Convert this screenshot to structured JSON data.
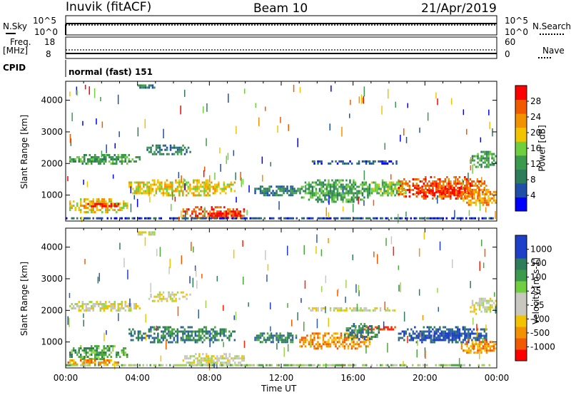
{
  "header": {
    "station": "Inuvik (fitACF)",
    "beam": "Beam 10",
    "date": "21/Apr/2019"
  },
  "top_panels": {
    "nsky_label": "N.Sky",
    "nsky_ticks": [
      "10^5",
      "10^0"
    ],
    "nsearch_label": "N.Search",
    "nsearch_ticks": [
      "10^5",
      "10^0"
    ],
    "freq_label_1": "Freq.",
    "freq_label_2": "[MHz]",
    "freq_ticks": [
      "18",
      "8"
    ],
    "nave_label": "Nave",
    "nave_ticks": [
      "60",
      "0"
    ],
    "cpid_label": "CPID",
    "cpid_value": "normal (fast) 151"
  },
  "colors": {
    "power_scale": [
      "#0000ff",
      "#1f4fa8",
      "#2e7d5a",
      "#3c9a4c",
      "#6fcf3f",
      "#f2c400",
      "#f39200",
      "#f25a00",
      "#ff0000"
    ],
    "velocity_scale": [
      "#1e40c8",
      "#2f5fa8",
      "#2e7d5a",
      "#4aa83c",
      "#9ed64a",
      "#c8c8c0",
      "#f2c400",
      "#f39200",
      "#f25a00",
      "#ff2000"
    ],
    "power_colorbar": [
      "#0000ff",
      "#1f4fa8",
      "#2e7d5a",
      "#3c9a4c",
      "#6fcf3f",
      "#f2c400",
      "#f39200",
      "#f25a00",
      "#ff0000"
    ],
    "velocity_colorbar": [
      "#ff0000",
      "#f25a00",
      "#f39200",
      "#f2c400",
      "#c8c8c0",
      "#c8c8c0",
      "#6fcf3f",
      "#3c9a4c",
      "#2e7d5a",
      "#1e40c8",
      "#1e40c8"
    ]
  },
  "chart_data": [
    {
      "type": "heatmap",
      "name": "power",
      "ylabel": "Slant Range [km]",
      "yticks": [
        1000,
        2000,
        3000,
        4000
      ],
      "ylim": [
        180,
        4600
      ],
      "xlim": [
        0,
        24
      ],
      "colorbar_label": "Power [dB]",
      "colorbar_ticks": [
        "4",
        "8",
        "12",
        "16",
        "20",
        "24",
        "28"
      ],
      "colorbar_range": [
        0,
        30
      ],
      "blobs": [
        {
          "t0": 0.2,
          "t1": 4.2,
          "r0": 1900,
          "r1": 2300,
          "level": 3
        },
        {
          "t0": 4.5,
          "t1": 7.0,
          "r0": 2250,
          "r1": 2600,
          "level": 2
        },
        {
          "t0": 0.2,
          "t1": 3.5,
          "r0": 400,
          "r1": 900,
          "level": 5
        },
        {
          "t0": 1.0,
          "t1": 3.0,
          "r0": 550,
          "r1": 750,
          "level": 8
        },
        {
          "t0": 3.5,
          "t1": 9.5,
          "r0": 900,
          "r1": 1500,
          "level": 5
        },
        {
          "t0": 6.5,
          "t1": 10.0,
          "r0": 200,
          "r1": 650,
          "level": 7
        },
        {
          "t0": 8.0,
          "t1": 9.8,
          "r0": 200,
          "r1": 450,
          "level": 8
        },
        {
          "t0": 10.5,
          "t1": 13.0,
          "r0": 900,
          "r1": 1300,
          "level": 2
        },
        {
          "t0": 13.0,
          "t1": 17.0,
          "r0": 700,
          "r1": 1500,
          "level": 3
        },
        {
          "t0": 17.0,
          "t1": 19.0,
          "r0": 900,
          "r1": 1500,
          "level": 4
        },
        {
          "t0": 18.5,
          "t1": 23.5,
          "r0": 800,
          "r1": 1600,
          "level": 7
        },
        {
          "t0": 19.5,
          "t1": 22.5,
          "r0": 900,
          "r1": 1300,
          "level": 8
        },
        {
          "t0": 22.0,
          "t1": 24.0,
          "r0": 600,
          "r1": 1200,
          "level": 6
        },
        {
          "t0": 13.5,
          "t1": 18.5,
          "r0": 1900,
          "r1": 2100,
          "level": 1
        },
        {
          "t0": 22.5,
          "t1": 24.0,
          "r0": 1800,
          "r1": 2400,
          "level": 3
        },
        {
          "t0": 4.0,
          "t1": 5.0,
          "r0": 4300,
          "r1": 4500,
          "level": 2
        },
        {
          "t0": 0.0,
          "t1": 24.0,
          "r0": 180,
          "r1": 300,
          "level": 1
        }
      ]
    },
    {
      "type": "heatmap",
      "name": "velocity",
      "ylabel": "Slant Range [km]",
      "xlabel": "Time UT",
      "xticks": [
        "00:00",
        "04:00",
        "08:00",
        "12:00",
        "16:00",
        "20:00",
        "00:00"
      ],
      "yticks": [
        1000,
        2000,
        3000,
        4000
      ],
      "ylim": [
        180,
        4600
      ],
      "xlim": [
        0,
        24
      ],
      "colorbar_label": "Velocity [m s-1]",
      "colorbar_ticks": [
        "1000",
        "500",
        "100",
        "25",
        "-25",
        "-100",
        "-500",
        "-1000"
      ],
      "blobs": [
        {
          "t0": 0.2,
          "t1": 4.2,
          "r0": 1900,
          "r1": 2300,
          "level": 5
        },
        {
          "t0": 4.5,
          "t1": 7.0,
          "r0": 2250,
          "r1": 2600,
          "level": 5
        },
        {
          "t0": 0.2,
          "t1": 3.5,
          "r0": 400,
          "r1": 900,
          "level": 3
        },
        {
          "t0": 0.0,
          "t1": 3.0,
          "r0": 200,
          "r1": 450,
          "level": 7
        },
        {
          "t0": 3.5,
          "t1": 9.5,
          "r0": 900,
          "r1": 1500,
          "level": 2
        },
        {
          "t0": 6.5,
          "t1": 10.0,
          "r0": 200,
          "r1": 650,
          "level": 5
        },
        {
          "t0": 10.5,
          "t1": 13.0,
          "r0": 900,
          "r1": 1300,
          "level": 2
        },
        {
          "t0": 13.0,
          "t1": 17.0,
          "r0": 700,
          "r1": 1300,
          "level": 7
        },
        {
          "t0": 16.5,
          "t1": 18.5,
          "r0": 1300,
          "r1": 1500,
          "level": 9
        },
        {
          "t0": 15.5,
          "t1": 17.5,
          "r0": 1000,
          "r1": 1600,
          "level": 2
        },
        {
          "t0": 18.5,
          "t1": 23.5,
          "r0": 900,
          "r1": 1500,
          "level": 1
        },
        {
          "t0": 19.5,
          "t1": 22.5,
          "r0": 1000,
          "r1": 1300,
          "level": 0
        },
        {
          "t0": 22.0,
          "t1": 24.0,
          "r0": 600,
          "r1": 1100,
          "level": 7
        },
        {
          "t0": 13.5,
          "t1": 18.5,
          "r0": 1900,
          "r1": 2100,
          "level": 5
        },
        {
          "t0": 22.5,
          "t1": 24.0,
          "r0": 1800,
          "r1": 2400,
          "level": 5
        },
        {
          "t0": 4.0,
          "t1": 5.0,
          "r0": 4300,
          "r1": 4500,
          "level": 5
        },
        {
          "t0": 0.0,
          "t1": 24.0,
          "r0": 180,
          "r1": 300,
          "level": 4
        }
      ]
    }
  ]
}
